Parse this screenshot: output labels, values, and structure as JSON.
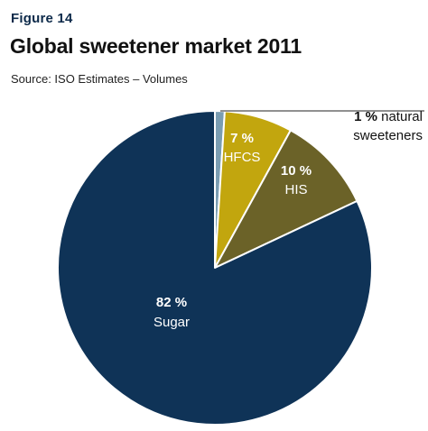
{
  "figure_label": "Figure 14",
  "chart_data": {
    "type": "pie",
    "title": "Global sweetener market 2011",
    "subtitle": "Source: ISO Estimates – Volumes",
    "slices": [
      {
        "label": "natural sweeteners",
        "label_lines": [
          "natural",
          "sweeteners"
        ],
        "pct_text": "1 %",
        "value": 1,
        "color": "#7a9db2"
      },
      {
        "label": "HFCS",
        "label_lines": [
          "HFCS"
        ],
        "pct_text": "7 %",
        "value": 7,
        "color": "#c2a60e"
      },
      {
        "label": "HIS",
        "label_lines": [
          "HIS"
        ],
        "pct_text": "10 %",
        "value": 10,
        "color": "#6b6228"
      },
      {
        "label": "Sugar",
        "label_lines": [
          "Sugar"
        ],
        "pct_text": "82 %",
        "value": 82,
        "color": "#0f3357"
      }
    ]
  }
}
